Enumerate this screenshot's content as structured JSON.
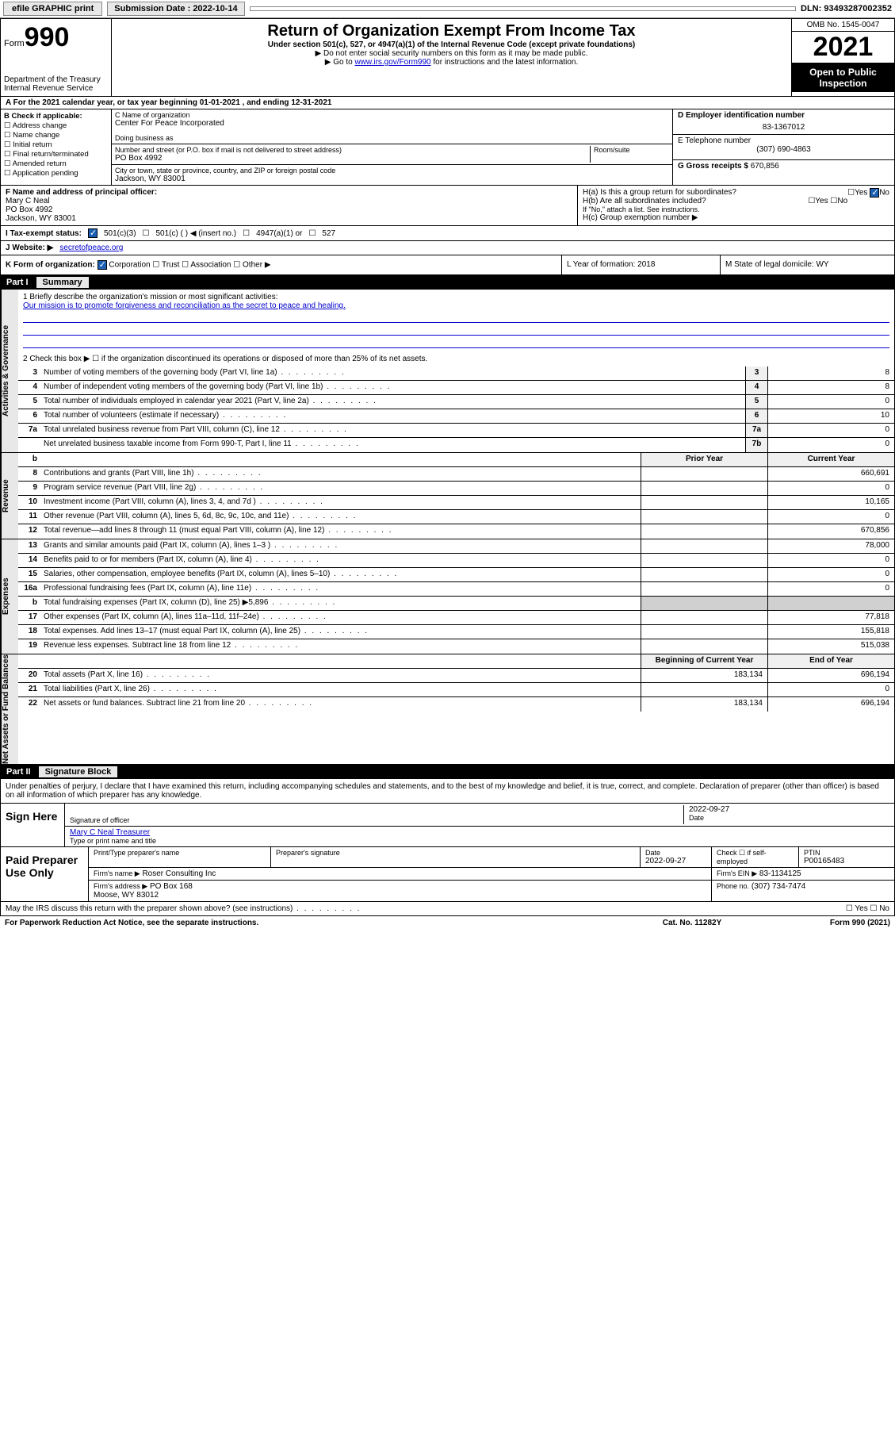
{
  "topbar": {
    "efile": "efile GRAPHIC print",
    "submission_label": "Submission Date : 2022-10-14",
    "dln": "DLN: 93493287002352"
  },
  "header": {
    "form_label": "Form",
    "form_num": "990",
    "dept": "Department of the Treasury\nInternal Revenue Service",
    "title": "Return of Organization Exempt From Income Tax",
    "sub1": "Under section 501(c), 527, or 4947(a)(1) of the Internal Revenue Code (except private foundations)",
    "sub2": "▶ Do not enter social security numbers on this form as it may be made public.",
    "sub3_pre": "▶ Go to ",
    "sub3_link": "www.irs.gov/Form990",
    "sub3_post": " for instructions and the latest information.",
    "omb": "OMB No. 1545-0047",
    "year": "2021",
    "open": "Open to Public Inspection"
  },
  "row_a": "A For the 2021 calendar year, or tax year beginning 01-01-2021   , and ending 12-31-2021",
  "col_b": {
    "label": "B Check if applicable:",
    "opts": [
      "Address change",
      "Name change",
      "Initial return",
      "Final return/terminated",
      "Amended return",
      "Application pending"
    ]
  },
  "col_c": {
    "name_label": "C Name of organization",
    "name": "Center For Peace Incorporated",
    "dba_label": "Doing business as",
    "dba": "",
    "addr_label": "Number and street (or P.O. box if mail is not delivered to street address)",
    "room_label": "Room/suite",
    "addr": "PO Box 4992",
    "city_label": "City or town, state or province, country, and ZIP or foreign postal code",
    "city": "Jackson, WY  83001"
  },
  "col_de": {
    "d_label": "D Employer identification number",
    "d_val": "83-1367012",
    "e_label": "E Telephone number",
    "e_val": "(307) 690-4863",
    "g_label": "G Gross receipts $",
    "g_val": "670,856"
  },
  "row_f": {
    "label": "F  Name and address of principal officer:",
    "name": "Mary C Neal",
    "addr1": "PO Box 4992",
    "addr2": "Jackson, WY  83001"
  },
  "row_h": {
    "ha": "H(a)  Is this a group return for subordinates?",
    "ha_ans": "No",
    "hb": "H(b)  Are all subordinates included?",
    "hb_note": "If \"No,\" attach a list. See instructions.",
    "hc": "H(c)  Group exemption number ▶"
  },
  "row_i": {
    "label": "I   Tax-exempt status:",
    "o1": "501(c)(3)",
    "o2": "501(c) (  ) ◀ (insert no.)",
    "o3": "4947(a)(1) or",
    "o4": "527"
  },
  "row_j": {
    "label": "J   Website: ▶",
    "val": "secretofpeace.org"
  },
  "row_k": {
    "k": "K Form of organization:",
    "opts": [
      "Corporation",
      "Trust",
      "Association",
      "Other ▶"
    ],
    "l": "L Year of formation: 2018",
    "m": "M State of legal domicile: WY"
  },
  "part1": {
    "hdr": "Part I",
    "title": "Summary",
    "mission_label": "1   Briefly describe the organization's mission or most significant activities:",
    "mission": "Our mission is to promote forgiveness and reconciliation as the secret to peace and healing.",
    "line2": "2   Check this box ▶ ☐  if the organization discontinued its operations or disposed of more than 25% of its net assets.",
    "gov_lines": [
      {
        "n": "3",
        "d": "Number of voting members of the governing body (Part VI, line 1a)",
        "b": "3",
        "v": "8"
      },
      {
        "n": "4",
        "d": "Number of independent voting members of the governing body (Part VI, line 1b)",
        "b": "4",
        "v": "8"
      },
      {
        "n": "5",
        "d": "Total number of individuals employed in calendar year 2021 (Part V, line 2a)",
        "b": "5",
        "v": "0"
      },
      {
        "n": "6",
        "d": "Total number of volunteers (estimate if necessary)",
        "b": "6",
        "v": "10"
      },
      {
        "n": "7a",
        "d": "Total unrelated business revenue from Part VIII, column (C), line 12",
        "b": "7a",
        "v": "0"
      },
      {
        "n": "",
        "d": "Net unrelated business taxable income from Form 990-T, Part I, line 11",
        "b": "7b",
        "v": "0"
      }
    ],
    "col_hdr_prior": "Prior Year",
    "col_hdr_curr": "Current Year",
    "rev_lines": [
      {
        "n": "8",
        "d": "Contributions and grants (Part VIII, line 1h)",
        "p": "",
        "c": "660,691"
      },
      {
        "n": "9",
        "d": "Program service revenue (Part VIII, line 2g)",
        "p": "",
        "c": "0"
      },
      {
        "n": "10",
        "d": "Investment income (Part VIII, column (A), lines 3, 4, and 7d )",
        "p": "",
        "c": "10,165"
      },
      {
        "n": "11",
        "d": "Other revenue (Part VIII, column (A), lines 5, 6d, 8c, 9c, 10c, and 11e)",
        "p": "",
        "c": "0"
      },
      {
        "n": "12",
        "d": "Total revenue—add lines 8 through 11 (must equal Part VIII, column (A), line 12)",
        "p": "",
        "c": "670,856"
      }
    ],
    "exp_lines": [
      {
        "n": "13",
        "d": "Grants and similar amounts paid (Part IX, column (A), lines 1–3 )",
        "p": "",
        "c": "78,000"
      },
      {
        "n": "14",
        "d": "Benefits paid to or for members (Part IX, column (A), line 4)",
        "p": "",
        "c": "0"
      },
      {
        "n": "15",
        "d": "Salaries, other compensation, employee benefits (Part IX, column (A), lines 5–10)",
        "p": "",
        "c": "0"
      },
      {
        "n": "16a",
        "d": "Professional fundraising fees (Part IX, column (A), line 11e)",
        "p": "",
        "c": "0"
      },
      {
        "n": "b",
        "d": "Total fundraising expenses (Part IX, column (D), line 25) ▶5,896",
        "p": "—",
        "c": "—"
      },
      {
        "n": "17",
        "d": "Other expenses (Part IX, column (A), lines 11a–11d, 11f–24e)",
        "p": "",
        "c": "77,818"
      },
      {
        "n": "18",
        "d": "Total expenses. Add lines 13–17 (must equal Part IX, column (A), line 25)",
        "p": "",
        "c": "155,818"
      },
      {
        "n": "19",
        "d": "Revenue less expenses. Subtract line 18 from line 12",
        "p": "",
        "c": "515,038"
      }
    ],
    "col_hdr_beg": "Beginning of Current Year",
    "col_hdr_end": "End of Year",
    "net_lines": [
      {
        "n": "20",
        "d": "Total assets (Part X, line 16)",
        "p": "183,134",
        "c": "696,194"
      },
      {
        "n": "21",
        "d": "Total liabilities (Part X, line 26)",
        "p": "",
        "c": "0"
      },
      {
        "n": "22",
        "d": "Net assets or fund balances. Subtract line 21 from line 20",
        "p": "183,134",
        "c": "696,194"
      }
    ]
  },
  "part2": {
    "hdr": "Part II",
    "title": "Signature Block",
    "intro": "Under penalties of perjury, I declare that I have examined this return, including accompanying schedules and statements, and to the best of my knowledge and belief, it is true, correct, and complete. Declaration of preparer (other than officer) is based on all information of which preparer has any knowledge.",
    "sign_here": "Sign Here",
    "sig_officer": "Signature of officer",
    "sig_date": "2022-09-27",
    "date_label": "Date",
    "officer_name": "Mary C Neal Treasurer",
    "type_label": "Type or print name and title",
    "paid": "Paid Preparer Use Only",
    "prep_name_label": "Print/Type preparer's name",
    "prep_sig_label": "Preparer's signature",
    "prep_date_label": "Date",
    "prep_date": "2022-09-27",
    "prep_check": "Check ☐ if self-employed",
    "ptin_label": "PTIN",
    "ptin": "P00165483",
    "firm_name_label": "Firm's name    ▶",
    "firm_name": "Roser Consulting Inc",
    "firm_ein_label": "Firm's EIN ▶",
    "firm_ein": "83-1134125",
    "firm_addr_label": "Firm's address ▶",
    "firm_addr": "PO Box 168\nMoose, WY  83012",
    "phone_label": "Phone no.",
    "phone": "(307) 734-7474",
    "discuss": "May the IRS discuss this return with the preparer shown above? (see instructions)",
    "paperwork": "For Paperwork Reduction Act Notice, see the separate instructions.",
    "cat": "Cat. No. 11282Y",
    "form_foot": "Form 990 (2021)"
  },
  "vtabs": {
    "gov": "Activities & Governance",
    "rev": "Revenue",
    "exp": "Expenses",
    "net": "Net Assets or Fund Balances"
  }
}
